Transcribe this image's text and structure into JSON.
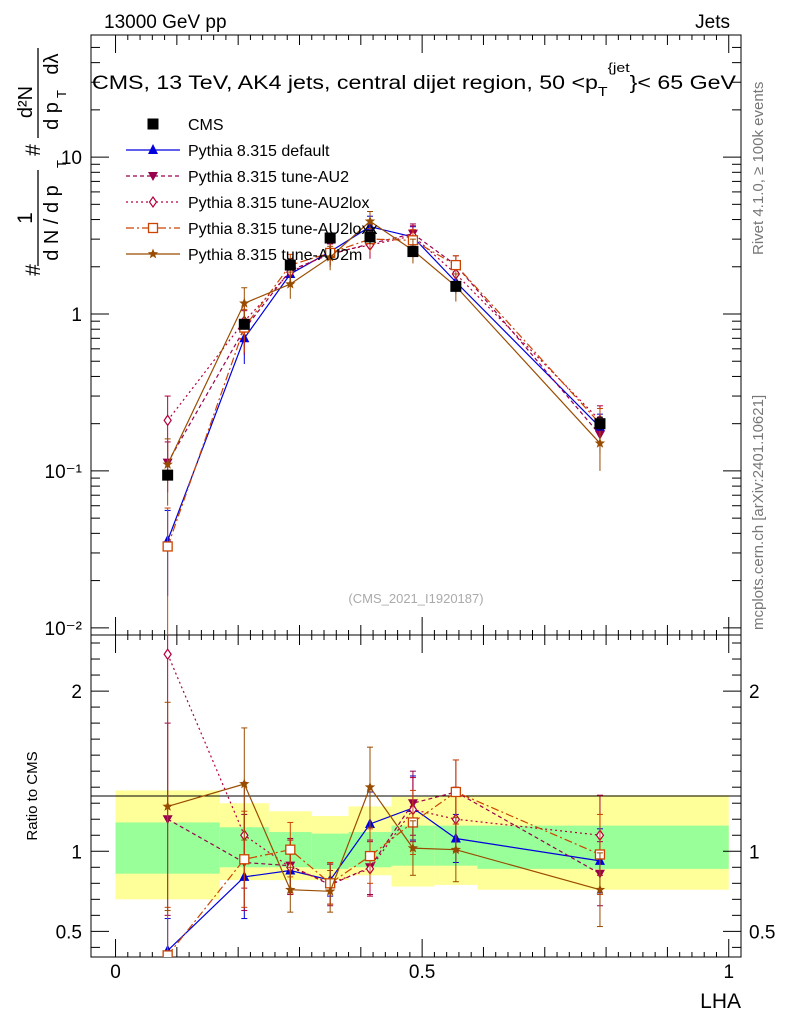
{
  "header": {
    "left": "13000 GeV pp",
    "right": "Jets"
  },
  "side_labels": {
    "rivet": "Rivet 4.1.0, ≥ 100k events",
    "mcplots": "mcplots.cern.ch [arXiv:2401.10621]"
  },
  "watermark": "(CMS_2021_I1920187)",
  "colors": {
    "cms": "#000000",
    "default": "#0000dd",
    "au2": "#99004d",
    "au2lox": "#b3003b",
    "au2loxx": "#cc4400",
    "au2m": "#994c00",
    "band_green": "#99ff99",
    "band_yellow": "#ffff99"
  },
  "chart_data": [
    {
      "type": "line",
      "panel": "main",
      "title": "CMS, 13 TeV, AK4 jets, central dijet region, 50 <p_T^{jet}< 65 GeV",
      "title_parts": {
        "prefix": "CMS, 13 TeV, AK4 jets, central dijet region, 50 <p",
        "sub": "T",
        "sup": "{jet",
        "suffix": "}< 65 GeV"
      },
      "ylabel": "1/(dN/dpT) d²N/(dpT dλ)",
      "ylabel_parts": {
        "one": "1",
        "hash": "#",
        "den": "d N / d p",
        "num_top": "d²N",
        "num_bottom": "d p",
        "dl": "dλ",
        "T": "T",
        "two": "2"
      },
      "yscale": "log",
      "ylim": [
        0.009,
        60
      ],
      "xlim": [
        -0.04,
        1.02
      ],
      "ytick_labels": [
        "10⁻²",
        "10⁻¹",
        "1",
        "10"
      ],
      "yticks": [
        0.01,
        0.1,
        1,
        10
      ],
      "legend_position": "top-left",
      "x": [
        0.085,
        0.21,
        0.285,
        0.35,
        0.415,
        0.485,
        0.555,
        0.79
      ],
      "series": [
        {
          "name": "CMS",
          "key": "cms",
          "marker": "square-filled",
          "values": [
            0.094,
            0.86,
            2.05,
            3.05,
            3.1,
            2.5,
            1.5,
            0.2
          ],
          "err": [
            0,
            0.05,
            0.1,
            0.15,
            0.3,
            0.2,
            0.1,
            0.02
          ]
        },
        {
          "name": "Pythia 8.315 default",
          "key": "default",
          "marker": "triangle-up-filled",
          "dash": "",
          "values": [
            0.036,
            0.7,
            1.8,
            2.5,
            3.6,
            3.1,
            1.6,
            0.19
          ],
          "err": [
            0.02,
            0.22,
            0.3,
            0.3,
            0.6,
            0.5,
            0.25,
            0.04
          ]
        },
        {
          "name": "Pythia 8.315 tune-AU2",
          "key": "au2",
          "marker": "triangle-down-filled",
          "dash": "4,3",
          "values": [
            0.113,
            0.8,
            1.9,
            2.4,
            2.8,
            3.25,
            2.05,
            0.17
          ],
          "err": [
            0.04,
            0.25,
            0.35,
            0.4,
            0.5,
            0.5,
            0.3,
            0.04
          ]
        },
        {
          "name": "Pythia 8.315 tune-AU2lox",
          "key": "au2lox",
          "marker": "diamond-open",
          "dash": "2,3",
          "values": [
            0.21,
            0.9,
            1.85,
            2.45,
            2.75,
            3.15,
            1.8,
            0.21
          ],
          "err": [
            0.09,
            0.28,
            0.35,
            0.4,
            0.5,
            0.5,
            0.3,
            0.05
          ]
        },
        {
          "name": "Pythia 8.315 tune-AU2loxx",
          "key": "au2loxx",
          "marker": "square-open",
          "dash": "8,3,2,3",
          "values": [
            0.033,
            0.82,
            2.05,
            2.45,
            3.0,
            2.95,
            2.05,
            0.2
          ],
          "err": [
            0.025,
            0.25,
            0.35,
            0.4,
            0.5,
            0.5,
            0.3,
            0.05
          ]
        },
        {
          "name": "Pythia 8.315 tune-AU2m",
          "key": "au2m",
          "marker": "star-filled",
          "dash": "",
          "values": [
            0.11,
            1.17,
            1.55,
            2.3,
            3.9,
            2.55,
            1.5,
            0.15
          ],
          "err": [
            0.05,
            0.3,
            0.3,
            0.4,
            0.6,
            0.45,
            0.3,
            0.05
          ]
        }
      ]
    },
    {
      "type": "line",
      "panel": "ratio",
      "ylabel": "Ratio to CMS",
      "xlabel": "LHA",
      "ylim": [
        0.34,
        2.35
      ],
      "xlim": [
        -0.04,
        1.02
      ],
      "yticks": [
        0.5,
        1,
        2
      ],
      "ytick_labels": [
        "0.5",
        "1",
        "2"
      ],
      "xticks": [
        0,
        0.5,
        1
      ],
      "xtick_labels": [
        "0",
        "0.5",
        "1"
      ],
      "bins": [
        [
          0.0,
          0.17
        ],
        [
          0.17,
          0.25
        ],
        [
          0.25,
          0.32
        ],
        [
          0.32,
          0.38
        ],
        [
          0.38,
          0.45
        ],
        [
          0.45,
          0.52
        ],
        [
          0.52,
          0.59
        ],
        [
          0.59,
          1.0
        ]
      ],
      "band_green": [
        [
          0.86,
          1.18
        ],
        [
          0.9,
          1.15
        ],
        [
          0.9,
          1.12
        ],
        [
          0.89,
          1.11
        ],
        [
          0.9,
          1.12
        ],
        [
          0.91,
          1.16
        ],
        [
          0.91,
          1.16
        ],
        [
          0.89,
          1.16
        ]
      ],
      "band_yellow": [
        [
          0.7,
          1.38
        ],
        [
          0.82,
          1.3
        ],
        [
          0.82,
          1.25
        ],
        [
          0.82,
          1.22
        ],
        [
          0.85,
          1.28
        ],
        [
          0.78,
          1.34
        ],
        [
          0.79,
          1.35
        ],
        [
          0.76,
          1.35
        ]
      ],
      "x": [
        0.085,
        0.21,
        0.285,
        0.35,
        0.415,
        0.485,
        0.555,
        0.79
      ],
      "series": [
        {
          "key": "default",
          "values": [
            0.38,
            0.84,
            0.88,
            0.82,
            1.17,
            1.27,
            1.08,
            0.94
          ],
          "err": [
            0.2,
            0.26,
            0.15,
            0.1,
            0.2,
            0.2,
            0.15,
            0.2
          ]
        },
        {
          "key": "au2",
          "values": [
            1.2,
            0.93,
            0.91,
            0.79,
            0.9,
            1.3,
            1.37,
            0.86
          ],
          "err": [
            0.6,
            0.3,
            0.17,
            0.13,
            0.17,
            0.2,
            0.2,
            0.2
          ]
        },
        {
          "key": "au2lox",
          "values": [
            2.23,
            1.1,
            0.9,
            0.8,
            0.89,
            1.26,
            1.2,
            1.1
          ],
          "err": [
            0.95,
            0.33,
            0.17,
            0.13,
            0.17,
            0.2,
            0.2,
            0.25
          ]
        },
        {
          "key": "au2loxx",
          "values": [
            0.35,
            0.95,
            1.01,
            0.8,
            0.97,
            1.18,
            1.37,
            0.98
          ],
          "err": [
            0.3,
            0.3,
            0.17,
            0.13,
            0.17,
            0.2,
            0.2,
            0.25
          ]
        },
        {
          "key": "au2m",
          "values": [
            1.28,
            1.42,
            0.76,
            0.75,
            1.4,
            1.02,
            1.01,
            0.76
          ],
          "err": [
            0.65,
            0.35,
            0.14,
            0.13,
            0.25,
            0.17,
            0.2,
            0.23
          ]
        }
      ]
    }
  ]
}
